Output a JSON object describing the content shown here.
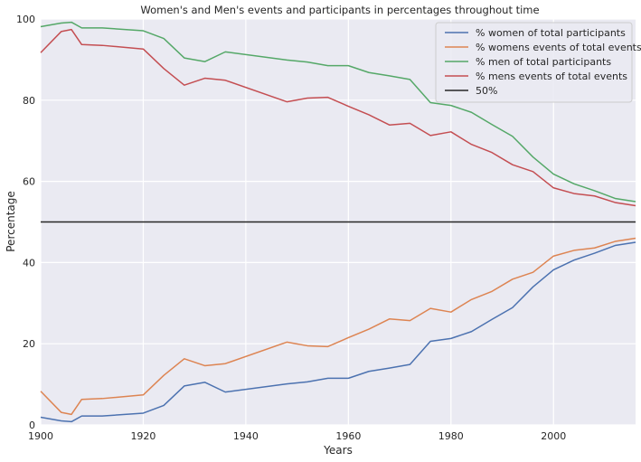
{
  "chart_data": {
    "type": "line",
    "title": "Women's and Men's events and participants in percentages throughout time",
    "xlabel": "Years",
    "ylabel": "Percentage",
    "xlim": [
      1900,
      2016
    ],
    "ylim": [
      0,
      100
    ],
    "xticks": [
      1900,
      1920,
      1940,
      1960,
      1980,
      2000
    ],
    "yticks": [
      0,
      20,
      40,
      60,
      80,
      100
    ],
    "grid": true,
    "legend_position": "top-right",
    "x": [
      1900,
      1904,
      1906,
      1908,
      1912,
      1920,
      1924,
      1928,
      1932,
      1936,
      1948,
      1952,
      1956,
      1960,
      1964,
      1968,
      1972,
      1976,
      1980,
      1984,
      1988,
      1992,
      1996,
      2000,
      2004,
      2008,
      2012,
      2016
    ],
    "series": [
      {
        "name": "% women of total participants",
        "color": "#4c72b0",
        "values": [
          1.9,
          1.0,
          0.8,
          2.2,
          2.2,
          2.9,
          4.8,
          9.6,
          10.5,
          8.1,
          10.1,
          10.6,
          11.5,
          11.5,
          13.2,
          14.0,
          14.9,
          20.6,
          21.3,
          23.0,
          26.0,
          28.9,
          34.0,
          38.2,
          40.6,
          42.3,
          44.2,
          45.0
        ]
      },
      {
        "name": "% womens events of total events",
        "color": "#dd8452",
        "values": [
          8.3,
          3.1,
          2.6,
          6.3,
          6.5,
          7.4,
          12.2,
          16.3,
          14.6,
          15.1,
          20.4,
          19.5,
          19.3,
          21.5,
          23.6,
          26.1,
          25.7,
          28.7,
          27.8,
          30.9,
          32.9,
          35.9,
          37.6,
          41.6,
          43.0,
          43.6,
          45.2,
          46.0
        ]
      },
      {
        "name": "% men of total participants",
        "color": "#55a868",
        "values": [
          98.1,
          99.0,
          99.2,
          97.8,
          97.8,
          97.1,
          95.2,
          90.4,
          89.5,
          91.9,
          89.9,
          89.4,
          88.5,
          88.5,
          86.8,
          86.0,
          85.1,
          79.4,
          78.7,
          77.0,
          74.0,
          71.1,
          66.0,
          61.8,
          59.4,
          57.7,
          55.8,
          55.0
        ]
      },
      {
        "name": "% mens events of total events",
        "color": "#c44e52",
        "values": [
          91.7,
          96.9,
          97.4,
          93.7,
          93.5,
          92.6,
          87.8,
          83.7,
          85.4,
          84.9,
          79.6,
          80.5,
          80.7,
          78.5,
          76.4,
          73.9,
          74.3,
          71.3,
          72.2,
          69.1,
          67.1,
          64.1,
          62.4,
          58.4,
          57.0,
          56.4,
          54.8,
          54.0
        ]
      }
    ],
    "reference_line": {
      "name": "50%",
      "y": 50,
      "color": "#262626"
    }
  }
}
